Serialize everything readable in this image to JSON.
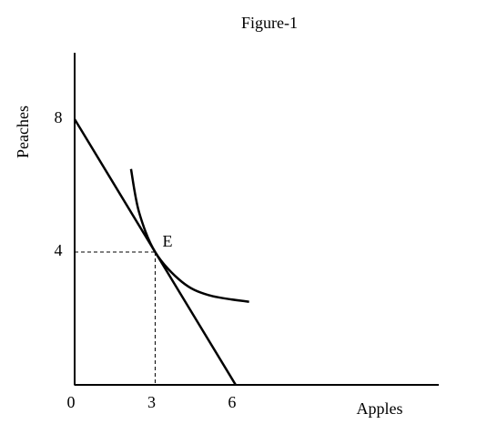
{
  "chart_data": {
    "type": "line",
    "title": "Figure-1",
    "x_label": "Apples",
    "y_label": "Peaches",
    "xlim": [
      0,
      13.5
    ],
    "ylim": [
      0,
      10
    ],
    "xticks": [
      0,
      3,
      6
    ],
    "yticks": [
      4,
      8
    ],
    "grid": false,
    "series": [
      {
        "color": "#000000",
        "x": [
          0,
          6
        ],
        "values": [
          8,
          0
        ]
      },
      {
        "color": "#000000",
        "x": [
          2.1,
          2.4,
          3,
          4,
          5,
          6.5
        ],
        "values": [
          6.5,
          5.2,
          4,
          3.1,
          2.7,
          2.5
        ]
      }
    ],
    "point": {
      "x": 3,
      "y": 4,
      "label": "E"
    }
  }
}
